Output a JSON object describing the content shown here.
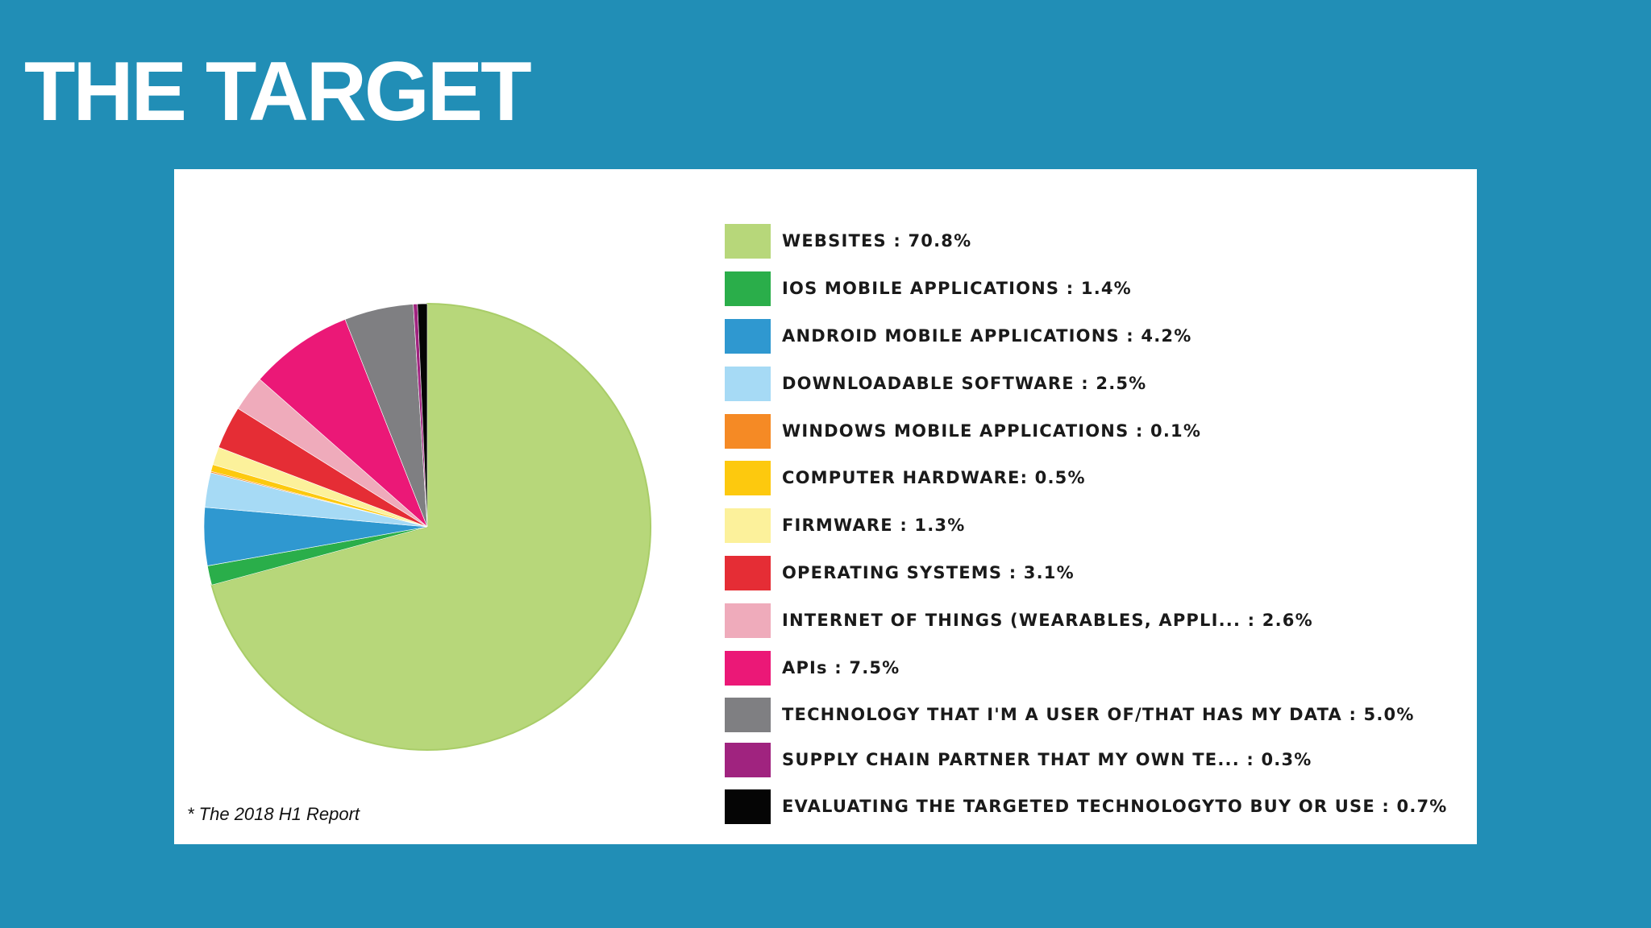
{
  "slide": {
    "title": "THE TARGET",
    "footnote": "* The 2018 H1 Report",
    "background_color": "#218eb6"
  },
  "chart_data": {
    "type": "pie",
    "title": "",
    "slices": [
      {
        "label": "WEBSITES : 70.8%",
        "value": 70.8,
        "color": "#b7d77a"
      },
      {
        "label": "IOS MOBILE APPLICATIONS : 1.4%",
        "value": 1.4,
        "color": "#2aae4a"
      },
      {
        "label": "ANDROID MOBILE APPLICATIONS : 4.2%",
        "value": 4.2,
        "color": "#2f98d0"
      },
      {
        "label": "DOWNLOADABLE SOFTWARE : 2.5%",
        "value": 2.5,
        "color": "#a6daf5"
      },
      {
        "label": "WINDOWS MOBILE APPLICATIONS : 0.1%",
        "value": 0.1,
        "color": "#f58a25"
      },
      {
        "label": "COMPUTER HARDWARE: 0.5%",
        "value": 0.5,
        "color": "#fdc90e"
      },
      {
        "label": "FIRMWARE : 1.3%",
        "value": 1.3,
        "color": "#fcf19b"
      },
      {
        "label": "OPERATING SYSTEMS : 3.1%",
        "value": 3.1,
        "color": "#e52d35"
      },
      {
        "label": "INTERNET OF THINGS (WEARABLES, APPLI... : 2.6%",
        "value": 2.6,
        "color": "#efabbb"
      },
      {
        "label": "APIs : 7.5%",
        "value": 7.5,
        "color": "#eb1877"
      },
      {
        "label": "TECHNOLOGY THAT I'M A USER OF/THAT HAS MY DATA : 5.0%",
        "value": 5.0,
        "color": "#7f7f82"
      },
      {
        "label": "SUPPLY CHAIN PARTNER THAT MY OWN TE... : 0.3%",
        "value": 0.3,
        "color": "#a0237f"
      },
      {
        "label": "EVALUATING THE TARGETED TECHNOLOGYTO BUY OR USE : 0.7%",
        "value": 0.7,
        "color": "#050505"
      }
    ],
    "start_angle": "12 o'clock",
    "direction": "clockwise",
    "legend_position": "right"
  }
}
